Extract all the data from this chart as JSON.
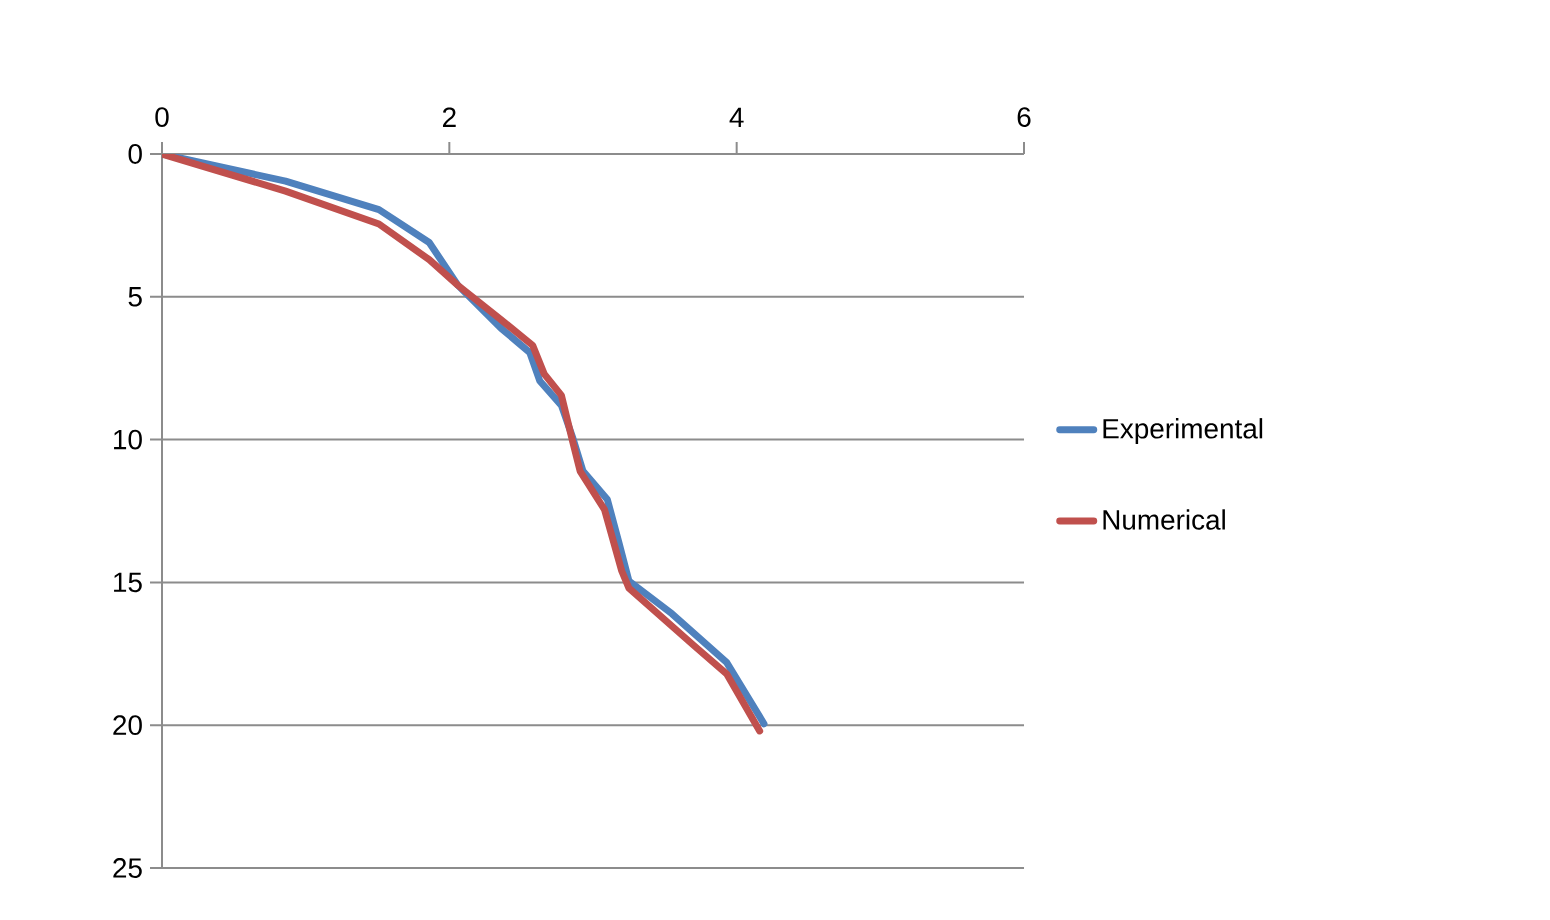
{
  "chart_data": {
    "type": "line",
    "xlim": [
      0,
      6
    ],
    "xticks": [
      0,
      2,
      4,
      6
    ],
    "ylim": [
      25,
      0
    ],
    "yticks": [
      0,
      5,
      10,
      15,
      20,
      25
    ],
    "grid": "y",
    "legend": "right",
    "line_style": "solid",
    "marker": "none",
    "series": [
      {
        "name": "Experimental",
        "color": "#4f81bd",
        "x": [
          0,
          0.86,
          1.51,
          1.86,
          2.06,
          2.36,
          2.56,
          2.63,
          2.78,
          2.86,
          2.93,
          3.1,
          3.18,
          3.25,
          3.55,
          3.93,
          4.19
        ],
        "values": [
          0,
          0.95,
          1.95,
          3.1,
          4.6,
          6.1,
          6.95,
          7.95,
          8.8,
          9.95,
          11.1,
          12.1,
          13.6,
          14.95,
          16.1,
          17.8,
          19.95
        ]
      },
      {
        "name": "Numerical",
        "color": "#c0504d",
        "x": [
          0,
          0.86,
          1.51,
          1.86,
          2.06,
          2.36,
          2.58,
          2.66,
          2.78,
          2.86,
          2.91,
          3.08,
          3.2,
          3.25,
          3.7,
          3.93,
          4.16
        ],
        "values": [
          0,
          1.3,
          2.45,
          3.7,
          4.6,
          5.8,
          6.7,
          7.7,
          8.45,
          10.1,
          11.1,
          12.45,
          14.6,
          15.2,
          17.2,
          18.2,
          20.2
        ]
      }
    ]
  }
}
